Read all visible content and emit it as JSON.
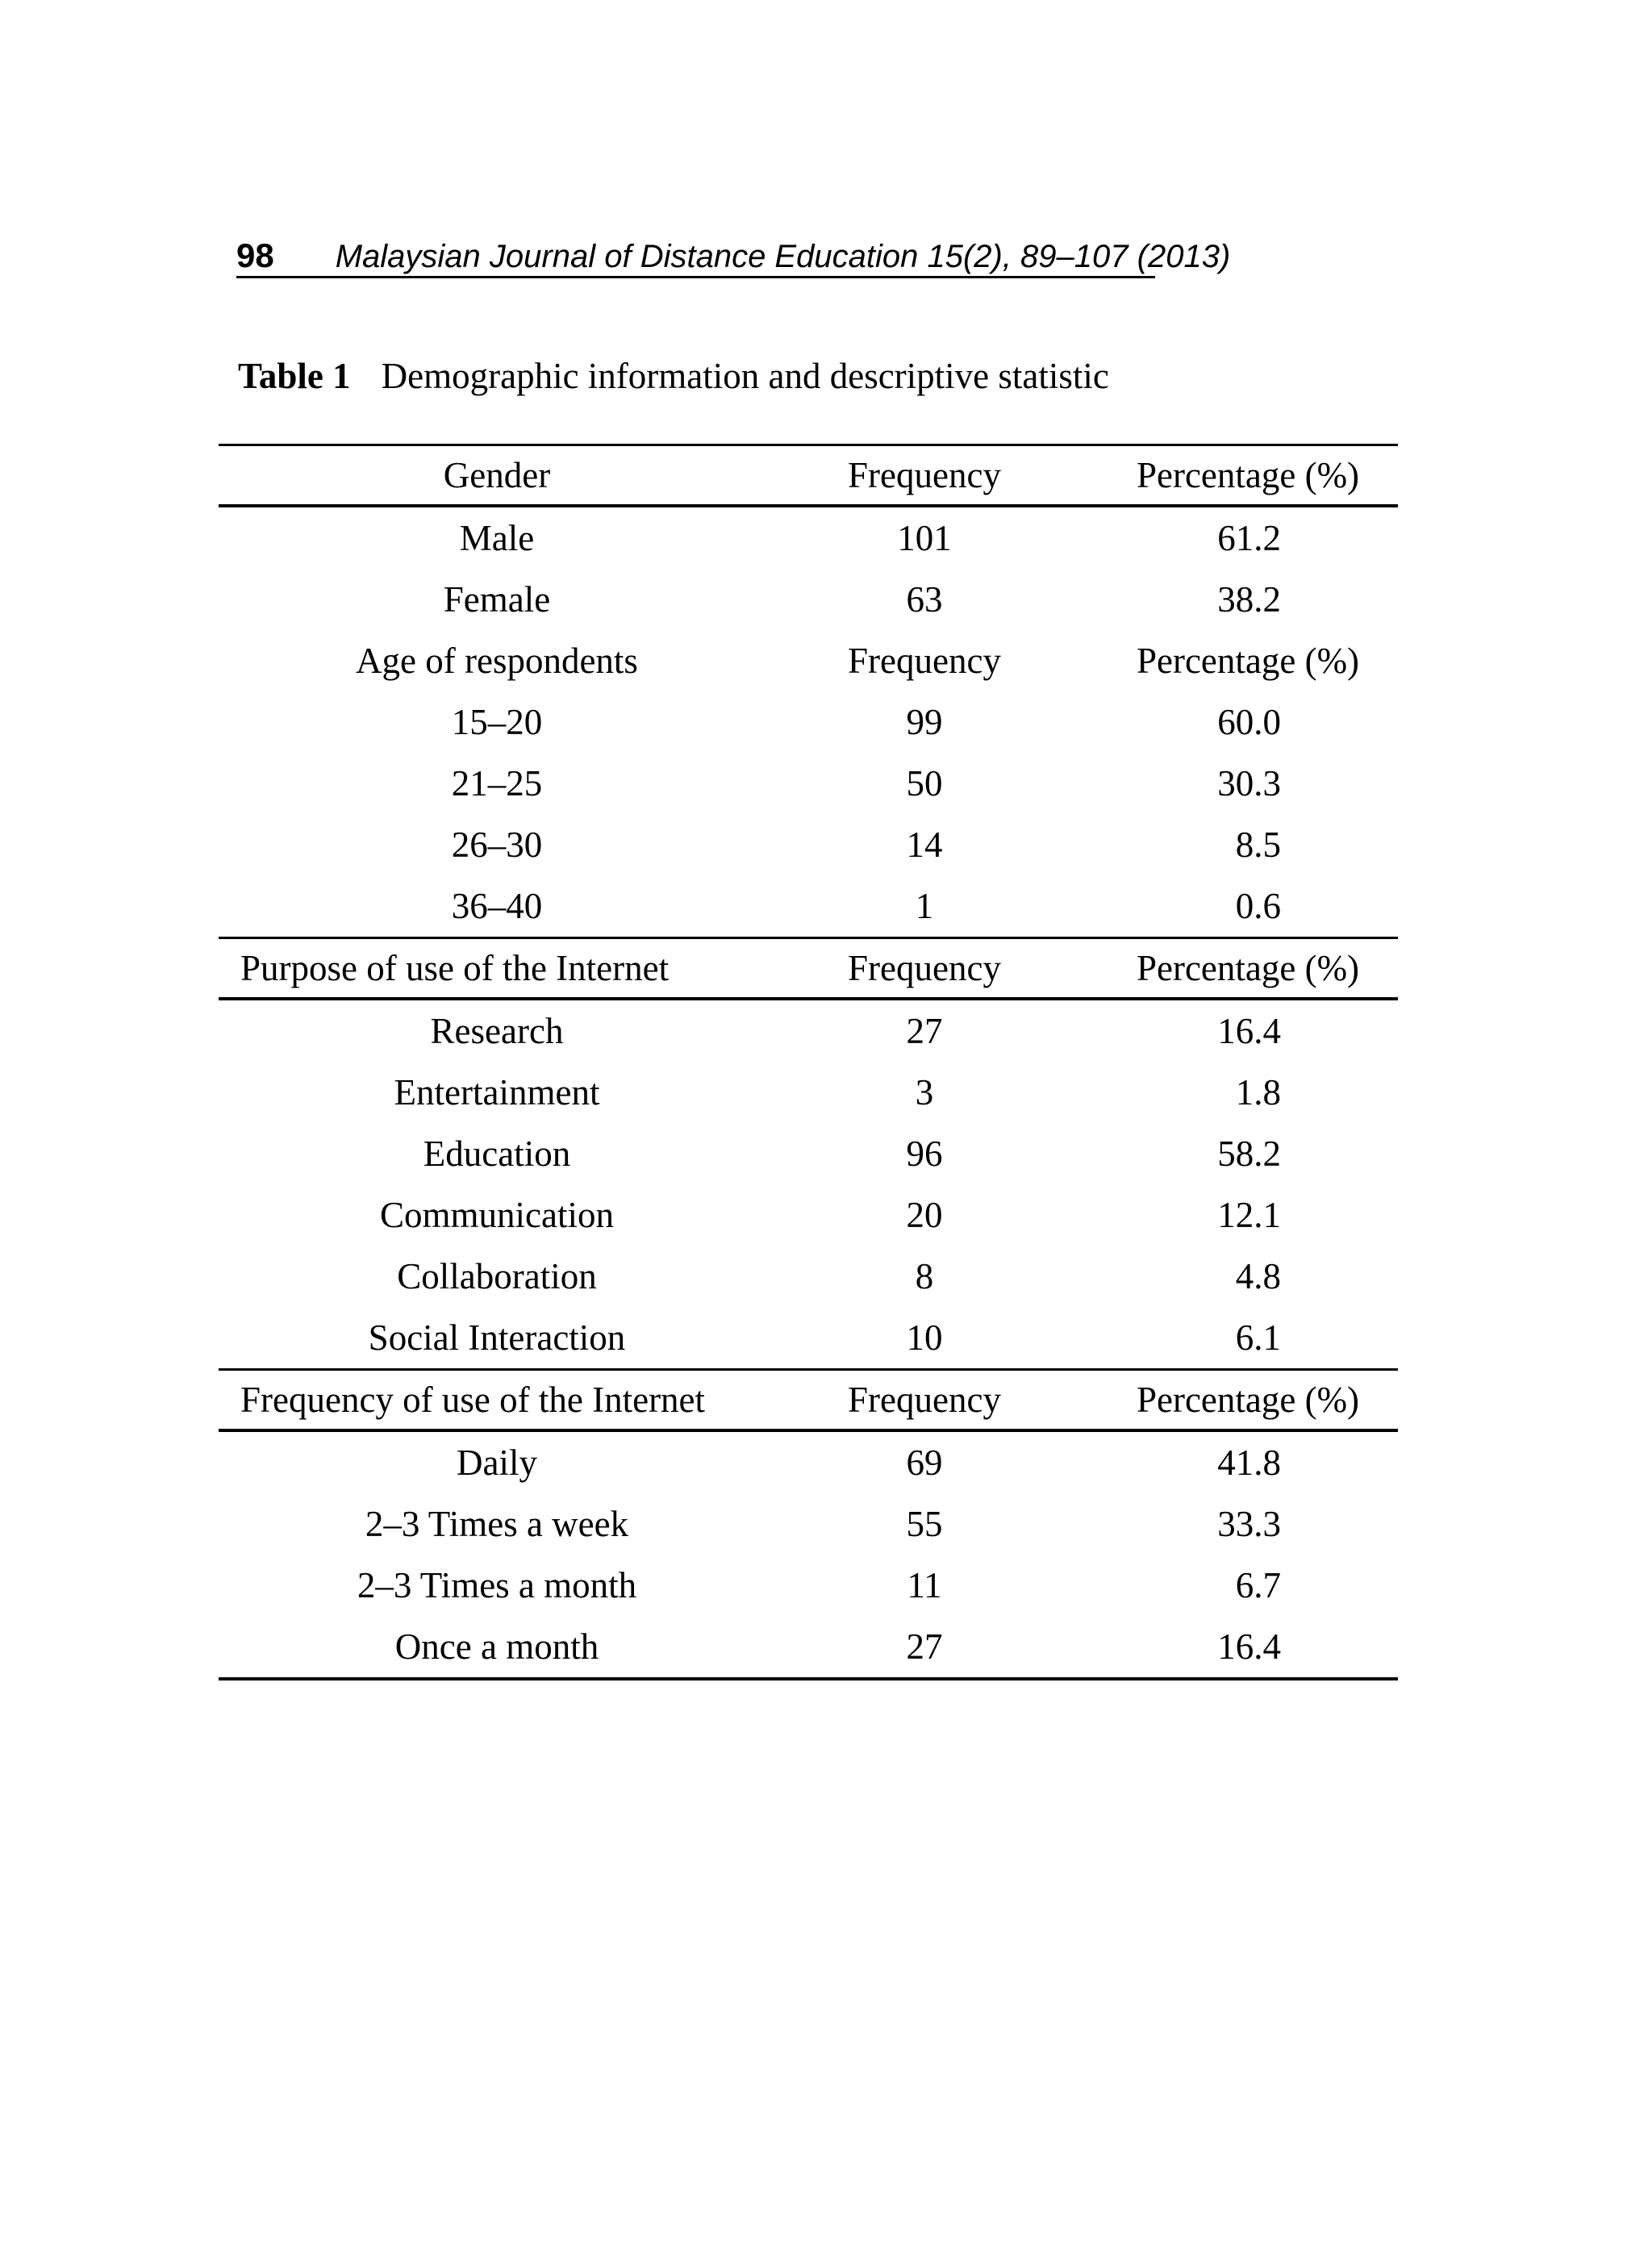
{
  "header": {
    "page_number": "98",
    "journal_reference": "Malaysian Journal of Distance Education 15(2), 89–107 (2013)"
  },
  "table": {
    "label": "Table 1",
    "caption": "Demographic information and descriptive statistic",
    "columns": {
      "frequency": "Frequency",
      "percentage": "Percentage (%)"
    },
    "sections": [
      {
        "header": "Gender",
        "align": "center",
        "ruled": true,
        "rows": [
          {
            "label": "Male",
            "frequency": "101",
            "percentage": "61.2"
          },
          {
            "label": "Female",
            "frequency": "63",
            "percentage": "38.2"
          }
        ]
      },
      {
        "header": "Age of respondents",
        "align": "center",
        "ruled": false,
        "rows": [
          {
            "label": "15–20",
            "frequency": "99",
            "percentage": "60.0"
          },
          {
            "label": "21–25",
            "frequency": "50",
            "percentage": "30.3"
          },
          {
            "label": "26–30",
            "frequency": "14",
            "percentage": "8.5"
          },
          {
            "label": "36–40",
            "frequency": "1",
            "percentage": "0.6"
          }
        ]
      },
      {
        "header": "Purpose of use of the Internet",
        "align": "left",
        "ruled": true,
        "rows": [
          {
            "label": "Research",
            "frequency": "27",
            "percentage": "16.4"
          },
          {
            "label": "Entertainment",
            "frequency": "3",
            "percentage": "1.8"
          },
          {
            "label": "Education",
            "frequency": "96",
            "percentage": "58.2"
          },
          {
            "label": "Communication",
            "frequency": "20",
            "percentage": "12.1"
          },
          {
            "label": "Collaboration",
            "frequency": "8",
            "percentage": "4.8"
          },
          {
            "label": "Social Interaction",
            "frequency": "10",
            "percentage": "6.1"
          }
        ]
      },
      {
        "header": "Frequency of use of the Internet",
        "align": "left",
        "ruled": true,
        "rows": [
          {
            "label": "Daily",
            "frequency": "69",
            "percentage": "41.8"
          },
          {
            "label": "2–3 Times a week",
            "frequency": "55",
            "percentage": "33.3"
          },
          {
            "label": "2–3 Times a month",
            "frequency": "11",
            "percentage": "6.7"
          },
          {
            "label": "Once a month",
            "frequency": "27",
            "percentage": "16.4"
          }
        ]
      }
    ]
  },
  "colors": {
    "text": "#000000",
    "background": "#ffffff",
    "rule": "#000000"
  }
}
